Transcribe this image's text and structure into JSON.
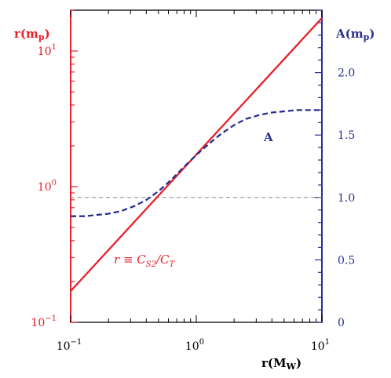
{
  "chart_data": {
    "type": "line",
    "title": "",
    "xlabel": "r(M_W)",
    "ylabel_left": "r(m_p)",
    "ylabel_right": "A(m_p)",
    "x_scale": "log",
    "xlim": [
      0.1,
      10
    ],
    "x_ticks": [
      {
        "value": 0.1,
        "mant": "10",
        "exp": "−1"
      },
      {
        "value": 1,
        "mant": "10",
        "exp": "0"
      },
      {
        "value": 10,
        "mant": "10",
        "exp": "1"
      }
    ],
    "left_axis": {
      "scale": "log",
      "ylim": [
        0.1,
        20
      ],
      "color": "#e8202a",
      "ticks": [
        {
          "value": 0.1,
          "mant": "10",
          "exp": "−1"
        },
        {
          "value": 1,
          "mant": "10",
          "exp": "0"
        },
        {
          "value": 10,
          "mant": "10",
          "exp": "1"
        }
      ]
    },
    "right_axis": {
      "scale": "linear",
      "ylim": [
        0,
        2.5
      ],
      "color": "#2a2f8f",
      "ticks": [
        "0",
        "0.5",
        "1.0",
        "1.5",
        "2.0"
      ]
    },
    "reference_line": {
      "axis": "right",
      "value": 1.0,
      "style": "dashed",
      "color": "#888888"
    },
    "series": [
      {
        "name": "r ≡ C_S2/C_T",
        "axis": "left",
        "color": "#e8202a",
        "style": "solid",
        "x": [
          0.1,
          10
        ],
        "y": [
          0.17,
          17.5
        ]
      },
      {
        "name": "A",
        "axis": "right",
        "color": "#2a2f8f",
        "style": "dashed",
        "x": [
          0.1,
          0.13,
          0.16,
          0.2,
          0.25,
          0.32,
          0.4,
          0.5,
          0.63,
          0.79,
          1.0,
          1.26,
          1.58,
          2.0,
          2.5,
          3.16,
          3.98,
          5.01,
          6.31,
          7.94,
          10.0
        ],
        "y": [
          0.85,
          0.85,
          0.86,
          0.87,
          0.89,
          0.93,
          0.98,
          1.05,
          1.14,
          1.24,
          1.34,
          1.43,
          1.51,
          1.58,
          1.63,
          1.66,
          1.68,
          1.69,
          1.7,
          1.7,
          1.7
        ]
      }
    ],
    "annotations": {
      "r_label_parts": [
        "r ≡ C",
        "S2",
        "/C",
        "T"
      ],
      "a_label": "A"
    }
  }
}
